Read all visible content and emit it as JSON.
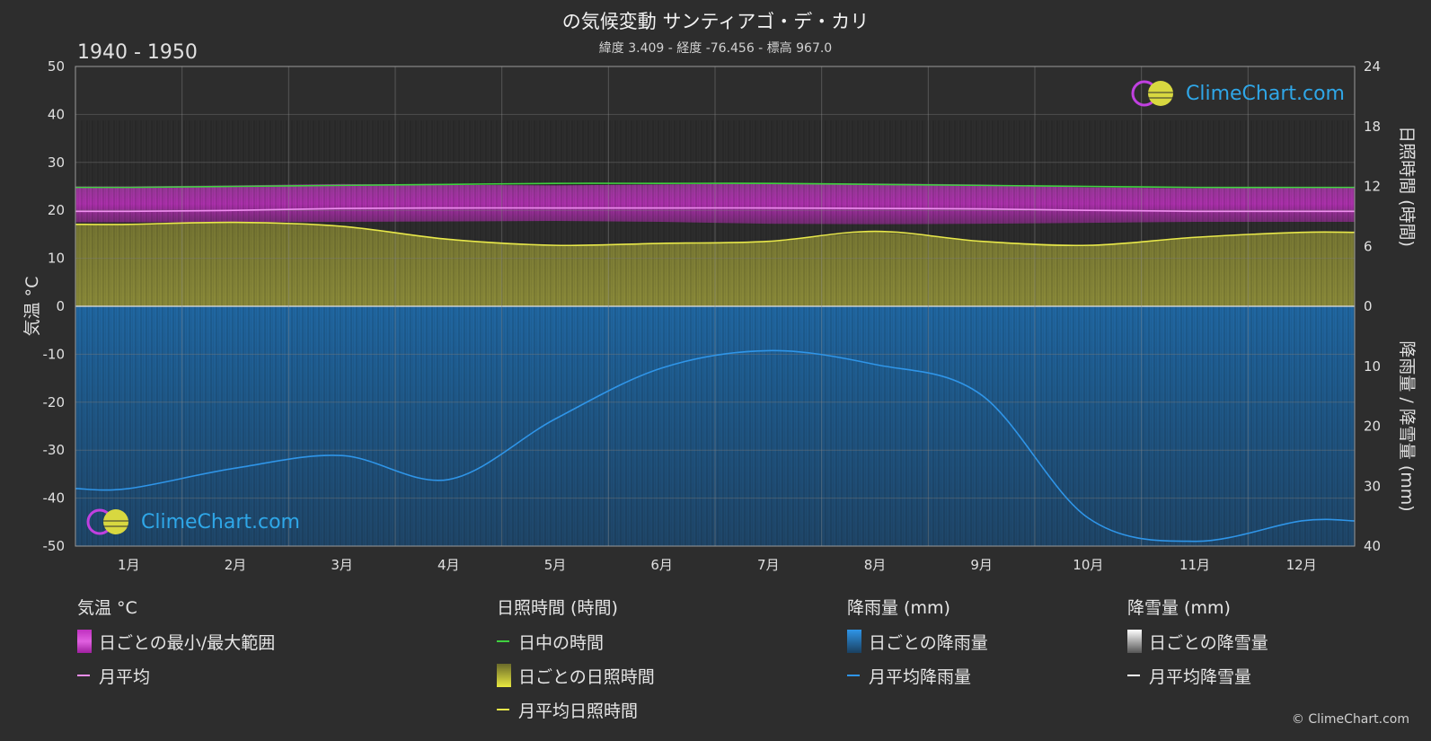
{
  "header": {
    "title": "の気候変動 サンティアゴ・デ・カリ",
    "subtitle": "緯度 3.409 - 経度 -76.456 - 標高 967.0",
    "period": "1940 - 1950"
  },
  "logo": {
    "text": "ClimeChart.com"
  },
  "copyright": "© ClimeChart.com",
  "colors": {
    "background": "#2d2d2d",
    "temp_range": "#d63bd6",
    "temp_mean": "#f08ef0",
    "daylight": "#3fd13f",
    "sunshine_fill": "#8a8a35",
    "sunshine_mean": "#e8e84a",
    "rain_fill": "#1f5f99",
    "rain_mean": "#2f95e8",
    "snow_mean": "#ffffff"
  },
  "chart_data": {
    "type": "line",
    "x_categories": [
      "1月",
      "2月",
      "3月",
      "4月",
      "5月",
      "6月",
      "7月",
      "8月",
      "9月",
      "10月",
      "11月",
      "12月"
    ],
    "left_axis": {
      "label": "気温 °C",
      "ylim": [
        -50,
        50
      ],
      "ticks": [
        50,
        40,
        30,
        20,
        10,
        0,
        -10,
        -20,
        -30,
        -40,
        -50
      ]
    },
    "right_axis_top": {
      "label": "日照時間 (時間)",
      "ylim": [
        0,
        24
      ],
      "ticks": [
        24,
        18,
        12,
        6,
        0
      ]
    },
    "right_axis_bottom": {
      "label": "降雨量 / 降雪量 (mm)",
      "ylim": [
        0,
        40
      ],
      "ticks": [
        0,
        10,
        20,
        30,
        40
      ]
    },
    "grid": true,
    "series": [
      {
        "name": "日ごとの最小/最大範囲",
        "axis": "temp",
        "kind": "band",
        "low": [
          17.5,
          17.5,
          17.6,
          17.7,
          17.8,
          17.6,
          17.2,
          17.1,
          17.2,
          17.4,
          17.6,
          17.6
        ],
        "high": [
          25.0,
          25.2,
          25.5,
          25.3,
          25.2,
          25.4,
          25.6,
          25.6,
          25.4,
          24.8,
          24.6,
          24.8
        ]
      },
      {
        "name": "月平均",
        "axis": "temp",
        "kind": "line",
        "values": [
          19.8,
          20.0,
          20.4,
          20.5,
          20.5,
          20.5,
          20.5,
          20.4,
          20.3,
          20.0,
          19.8,
          19.8
        ]
      },
      {
        "name": "日中の時間",
        "axis": "sun",
        "kind": "line",
        "values": [
          11.9,
          12.0,
          12.1,
          12.2,
          12.3,
          12.3,
          12.3,
          12.2,
          12.1,
          12.0,
          11.9,
          11.9
        ]
      },
      {
        "name": "日ごとの日照時間",
        "axis": "sun",
        "kind": "fill",
        "values": [
          8.2,
          8.4,
          8.0,
          6.7,
          6.1,
          6.3,
          6.5,
          7.5,
          6.5,
          6.1,
          6.9,
          7.4
        ]
      },
      {
        "name": "月平均日照時間",
        "axis": "sun",
        "kind": "line",
        "values": [
          8.2,
          8.4,
          8.0,
          6.7,
          6.1,
          6.3,
          6.5,
          7.5,
          6.5,
          6.1,
          6.9,
          7.4
        ]
      },
      {
        "name": "日ごとの降雨量",
        "axis": "rain",
        "kind": "fill",
        "values": [
          40,
          40,
          40,
          40,
          40,
          40,
          40,
          40,
          40,
          40,
          40,
          40
        ]
      },
      {
        "name": "月平均降雨量",
        "axis": "rain",
        "kind": "line",
        "values": [
          30.4,
          27.0,
          24.9,
          28.9,
          18.8,
          10.3,
          7.4,
          9.7,
          14.8,
          35.3,
          39.2,
          35.8
        ]
      },
      {
        "name": "日ごとの降雪量",
        "axis": "rain",
        "kind": "fill",
        "values": [
          0,
          0,
          0,
          0,
          0,
          0,
          0,
          0,
          0,
          0,
          0,
          0
        ]
      },
      {
        "name": "月平均降雪量",
        "axis": "rain",
        "kind": "line",
        "values": [
          0,
          0,
          0,
          0,
          0,
          0,
          0,
          0,
          0,
          0,
          0,
          0
        ]
      }
    ]
  },
  "legend": {
    "temp": {
      "header": "気温 °C",
      "items": [
        "日ごとの最小/最大範囲",
        "月平均"
      ]
    },
    "sun": {
      "header": "日照時間 (時間)",
      "items": [
        "日中の時間",
        "日ごとの日照時間",
        "月平均日照時間"
      ]
    },
    "rain": {
      "header": "降雨量 (mm)",
      "items": [
        "日ごとの降雨量",
        "月平均降雨量"
      ]
    },
    "snow": {
      "header": "降雪量 (mm)",
      "items": [
        "日ごとの降雪量",
        "月平均降雪量"
      ]
    }
  }
}
